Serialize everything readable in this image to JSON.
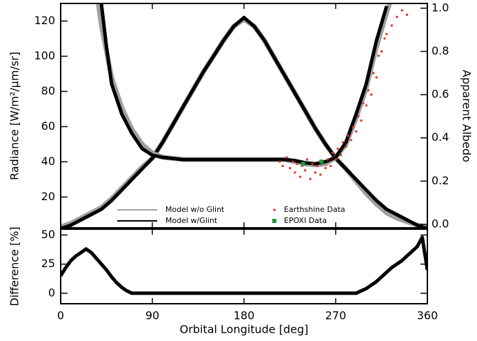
{
  "chart_data": [
    {
      "type": "line",
      "ylabel": "Radiance [W/m²/μm/sr]",
      "y2label": "Apparent Albedo",
      "xlim": [
        0,
        360
      ],
      "xticks": [
        0,
        90,
        180,
        270,
        360
      ],
      "ylim": [
        2.5,
        130
      ],
      "yticks": [
        20,
        40,
        60,
        80,
        100,
        120
      ],
      "y2lim": [
        -0.016,
        1.022
      ],
      "y2ticks": [
        {
          "value": 0,
          "label": "0.0"
        },
        0.2,
        0.4,
        0.6,
        0.8,
        {
          "value": 1,
          "label": "1.0"
        }
      ],
      "legend_loc": "lower center",
      "series": [
        {
          "name": "Model w/o Glint",
          "color": "#a0a0a0",
          "style": "line",
          "x": [
            0,
            10,
            20,
            30,
            40,
            50,
            60,
            70,
            80,
            90,
            100,
            110,
            120,
            130,
            140,
            150,
            160,
            170,
            180,
            190,
            200,
            210,
            220,
            230,
            240,
            250,
            260,
            270,
            280,
            290,
            300,
            310,
            320,
            330,
            340,
            350,
            360
          ],
          "values": [
            3,
            5,
            8,
            11,
            14,
            19,
            25,
            31,
            37,
            42,
            51,
            61,
            71,
            81,
            91,
            100,
            109,
            117,
            121,
            117,
            109,
            99,
            89,
            79,
            69,
            59,
            50,
            42,
            36,
            29,
            22,
            16,
            11,
            8,
            6,
            4,
            3
          ]
        },
        {
          "name": "Model w/Glint",
          "color": "#000000",
          "style": "line",
          "x": [
            0,
            10,
            20,
            30,
            40,
            50,
            60,
            70,
            80,
            90,
            100,
            110,
            120,
            130,
            140,
            150,
            160,
            170,
            180,
            190,
            200,
            210,
            220,
            230,
            240,
            250,
            260,
            270,
            280,
            290,
            300,
            310,
            320,
            330,
            340,
            350,
            360
          ],
          "values": [
            2,
            4,
            7,
            10,
            13,
            18,
            24,
            30,
            36,
            42,
            51,
            61,
            71,
            81,
            91,
            100,
            109,
            117,
            122,
            117,
            109,
            99,
            89,
            79,
            69,
            59,
            50,
            42,
            36,
            30,
            24,
            18,
            13,
            10,
            7,
            4,
            2
          ]
        },
        {
          "name": "Model w/o Glint",
          "color": "#a0a0a0",
          "style": "line",
          "axis": "y2",
          "x": [
            37,
            40,
            45,
            50,
            60,
            70,
            80,
            90,
            100,
            120,
            140,
            160,
            180,
            200,
            220,
            230,
            240,
            250,
            260,
            270,
            280,
            290,
            300,
            310,
            320,
            323
          ],
          "values": [
            1.02,
            0.92,
            0.8,
            0.68,
            0.54,
            0.44,
            0.37,
            0.33,
            0.31,
            0.3,
            0.3,
            0.3,
            0.3,
            0.3,
            0.3,
            0.29,
            0.28,
            0.275,
            0.28,
            0.31,
            0.37,
            0.49,
            0.63,
            0.82,
            0.98,
            1.02
          ]
        },
        {
          "name": "Model w/Glint",
          "color": "#000000",
          "style": "line",
          "axis": "y2",
          "x": [
            40,
            45,
            50,
            60,
            70,
            80,
            90,
            100,
            120,
            140,
            160,
            180,
            200,
            220,
            230,
            240,
            250,
            260,
            270,
            280,
            290,
            300,
            310,
            320
          ],
          "values": [
            1.02,
            0.82,
            0.65,
            0.51,
            0.42,
            0.35,
            0.32,
            0.31,
            0.3,
            0.3,
            0.3,
            0.3,
            0.3,
            0.3,
            0.295,
            0.285,
            0.28,
            0.29,
            0.31,
            0.38,
            0.51,
            0.65,
            0.85,
            1.01
          ]
        },
        {
          "name": "Earthshine Data",
          "color": "#e0301e",
          "style": "points",
          "axis": "y2",
          "x": [
            215,
            218,
            222,
            225,
            228,
            230,
            232,
            235,
            237,
            240,
            242,
            245,
            247,
            250,
            252,
            255,
            257,
            260,
            262,
            265,
            267,
            270,
            272,
            275,
            277,
            280,
            282,
            285,
            287,
            290,
            292,
            295,
            297,
            300,
            302,
            305,
            307,
            310,
            312,
            315,
            318,
            320,
            325,
            330,
            335,
            340
          ],
          "values": [
            0.29,
            0.27,
            0.31,
            0.26,
            0.29,
            0.24,
            0.28,
            0.22,
            0.27,
            0.25,
            0.3,
            0.21,
            0.28,
            0.24,
            0.27,
            0.23,
            0.29,
            0.26,
            0.3,
            0.27,
            0.33,
            0.3,
            0.35,
            0.32,
            0.38,
            0.36,
            0.41,
            0.39,
            0.45,
            0.43,
            0.5,
            0.48,
            0.56,
            0.55,
            0.62,
            0.6,
            0.7,
            0.68,
            0.78,
            0.8,
            0.86,
            0.88,
            0.92,
            0.96,
            0.99,
            0.97
          ]
        },
        {
          "name": "EPOXI Data",
          "color": "#1a9a3a",
          "style": "squares",
          "axis": "y2",
          "x": [
            238,
            256
          ],
          "values": [
            0.28,
            0.29
          ]
        }
      ]
    },
    {
      "type": "line",
      "xlabel": "Orbital Longitude [deg]",
      "ylabel": "Difference [%]",
      "xlim": [
        0,
        360
      ],
      "xticks": [
        0,
        90,
        180,
        270,
        360
      ],
      "ylim": [
        -9,
        55
      ],
      "yticks": [
        0,
        25,
        50
      ],
      "series": [
        {
          "color": "#000000",
          "style": "line",
          "x": [
            0,
            5,
            10,
            15,
            20,
            25,
            30,
            35,
            40,
            45,
            50,
            55,
            60,
            65,
            70,
            80,
            100,
            150,
            200,
            250,
            280,
            290,
            295,
            300,
            305,
            310,
            315,
            320,
            325,
            330,
            335,
            340,
            345,
            350,
            355,
            360
          ],
          "values": [
            15,
            22,
            28,
            32,
            35,
            38,
            35,
            30,
            25,
            20,
            14,
            9,
            5,
            2,
            0,
            0,
            0,
            0,
            0,
            0,
            0,
            0,
            2,
            4,
            7,
            10,
            14,
            18,
            22,
            25,
            28,
            32,
            36,
            40,
            48,
            20
          ]
        }
      ]
    }
  ]
}
